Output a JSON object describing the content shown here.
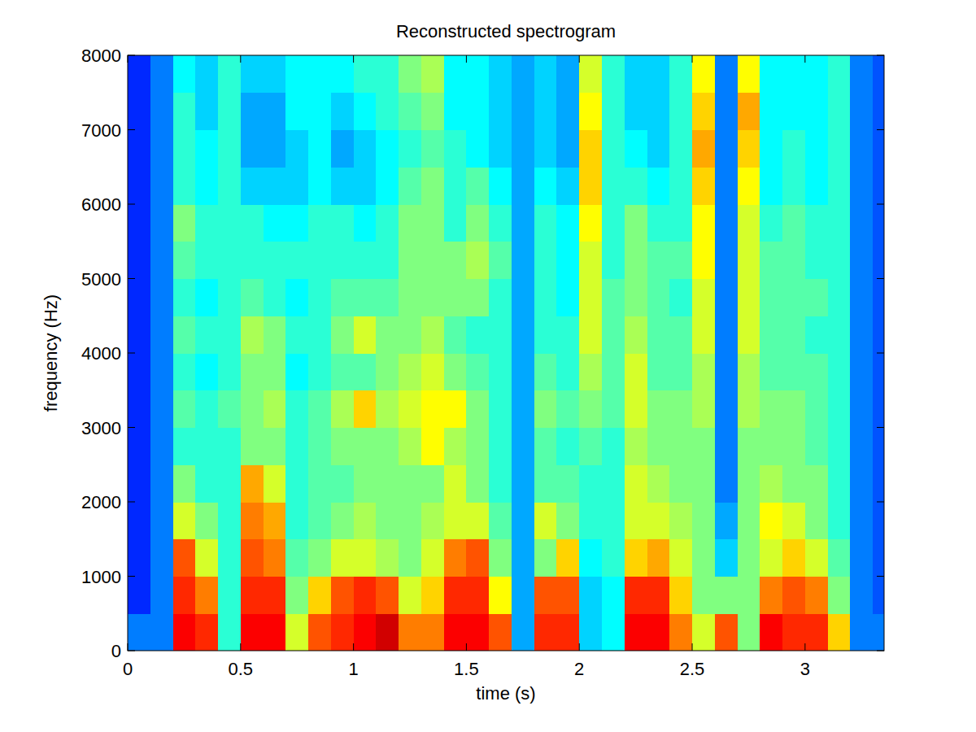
{
  "chart_data": {
    "type": "heatmap",
    "title": "Reconstructed spectrogram",
    "x_label": "time (s)",
    "y_label": "frequency (Hz)",
    "xlim": [
      0,
      3.35
    ],
    "ylim": [
      0,
      8000
    ],
    "xticks": [
      0,
      0.5,
      1,
      1.5,
      2,
      2.5,
      3
    ],
    "yticks": [
      0,
      1000,
      2000,
      3000,
      4000,
      5000,
      6000,
      7000,
      8000
    ],
    "zlim": [
      0,
      10
    ],
    "x": [
      0,
      0.1,
      0.2,
      0.3,
      0.4,
      0.5,
      0.6,
      0.7,
      0.8,
      0.9,
      1.0,
      1.1,
      1.2,
      1.3,
      1.4,
      1.5,
      1.6,
      1.7,
      1.8,
      1.9,
      2.0,
      2.1,
      2.2,
      2.3,
      2.4,
      2.5,
      2.6,
      2.7,
      2.8,
      2.9,
      3.0,
      3.1,
      3.2,
      3.3,
      3.35
    ],
    "y": [
      0,
      500,
      1000,
      1500,
      2000,
      2500,
      3000,
      3500,
      4000,
      4500,
      5000,
      5500,
      6000,
      6500,
      7000,
      7500,
      8000
    ],
    "z": [
      [
        2,
        1,
        1,
        1,
        1,
        1,
        1,
        1,
        1,
        1,
        1,
        1,
        1,
        1,
        1,
        1
      ],
      [
        2,
        2,
        2,
        2,
        2,
        2,
        2,
        2,
        2,
        2,
        2,
        2,
        2,
        2,
        2,
        2
      ],
      [
        9.5,
        9,
        8.5,
        6,
        5,
        4,
        4.5,
        4,
        4.5,
        4,
        4.5,
        5,
        4,
        4,
        4,
        3.5
      ],
      [
        9,
        8,
        6,
        5,
        4,
        4,
        4,
        3.5,
        4,
        3.5,
        4,
        4,
        3.5,
        3.5,
        3,
        3
      ],
      [
        4,
        4,
        4,
        4,
        4,
        4,
        4.5,
        4,
        4,
        4,
        4,
        4,
        4,
        4,
        4,
        4
      ],
      [
        9.5,
        9,
        8.5,
        8,
        7.5,
        5,
        5,
        5,
        5.5,
        4.5,
        4,
        4,
        3,
        2.5,
        2.5,
        3
      ],
      [
        9.5,
        9,
        8,
        7.5,
        6,
        5,
        5.5,
        5,
        5,
        4,
        4,
        3.5,
        3,
        2.5,
        2.5,
        3
      ],
      [
        6,
        5,
        4.5,
        4,
        4,
        4,
        4,
        3.5,
        4,
        3.5,
        4,
        3.5,
        3,
        3,
        3.5,
        3.5
      ],
      [
        8.5,
        7,
        5,
        4.5,
        4.5,
        4.5,
        4.5,
        4,
        4,
        4,
        4,
        4,
        3.5,
        3.5,
        3.5,
        3.5
      ],
      [
        9,
        8.5,
        6,
        5,
        4.5,
        5,
        5.5,
        4.5,
        5,
        4.5,
        4,
        4,
        3,
        2.5,
        3,
        3.5
      ],
      [
        9.5,
        9,
        6,
        5.5,
        5,
        5,
        7,
        4.5,
        6,
        4.5,
        4,
        3.5,
        3,
        3,
        3.5,
        4
      ],
      [
        10,
        8.5,
        5.5,
        5,
        5,
        5,
        5.5,
        5,
        5,
        4.5,
        4,
        4,
        3.5,
        3.5,
        4,
        4
      ],
      [
        8,
        6,
        5,
        5,
        5,
        5.5,
        6,
        5.5,
        5,
        5,
        5,
        5,
        4.5,
        4,
        4.5,
        5
      ],
      [
        8,
        7,
        6,
        5.5,
        5,
        6.5,
        6.5,
        6,
        5.5,
        5,
        5,
        5,
        5,
        4.5,
        5,
        5.5
      ],
      [
        9.5,
        9,
        8,
        6,
        6,
        5.5,
        6.5,
        5,
        4.5,
        5,
        5,
        4,
        4,
        4,
        3.5,
        3.5
      ],
      [
        9.5,
        9,
        8.5,
        6,
        5,
        5,
        5,
        4.5,
        4,
        5,
        5.5,
        5,
        4.5,
        3.5,
        3.5,
        3.5
      ],
      [
        8.5,
        6.5,
        5,
        4.5,
        4,
        4,
        4,
        4,
        4,
        4,
        4.5,
        4,
        3.5,
        3,
        3,
        3
      ],
      [
        2.5,
        2.5,
        2.5,
        2.5,
        2.5,
        2.5,
        2.5,
        2.5,
        2.5,
        2.5,
        2.5,
        2.5,
        2.5,
        2.5,
        2.5,
        2.5
      ],
      [
        9,
        8.5,
        5,
        6,
        4.5,
        4.5,
        5,
        4.5,
        4,
        4,
        4,
        4,
        3.5,
        3,
        3,
        3
      ],
      [
        9,
        8.5,
        7,
        5,
        4.5,
        4,
        4.5,
        4,
        4,
        3.5,
        3.5,
        3.5,
        3,
        2.5,
        2.5,
        2.5
      ],
      [
        3,
        3,
        3.5,
        4,
        4,
        4.5,
        5,
        5.5,
        6,
        6,
        6,
        6.5,
        7,
        7,
        6.5,
        6
      ],
      [
        3.5,
        3.5,
        4,
        4,
        4,
        4,
        4.5,
        4.5,
        4.5,
        4.5,
        4,
        4,
        4,
        4,
        4,
        4
      ],
      [
        9.5,
        9,
        7,
        6,
        6,
        5.5,
        6,
        6,
        5.5,
        5,
        5,
        5,
        4,
        3.5,
        3,
        3
      ],
      [
        9.5,
        9,
        7.5,
        6,
        5.5,
        5,
        5,
        4.5,
        4.5,
        4.5,
        4.5,
        4,
        3.5,
        3,
        3,
        3
      ],
      [
        8,
        7,
        6,
        5.5,
        5,
        5,
        5,
        4.5,
        4.5,
        4,
        4.5,
        4,
        4,
        4,
        4,
        4
      ],
      [
        6,
        5,
        5,
        5,
        5,
        5,
        5.5,
        5.5,
        6,
        6,
        6.5,
        6.5,
        7,
        7.5,
        7,
        6.5
      ],
      [
        8.5,
        5,
        3,
        2.5,
        2,
        2,
        2,
        2,
        2,
        2,
        2,
        2,
        2,
        2,
        2,
        2
      ],
      [
        5,
        5,
        5,
        5,
        5,
        5,
        5.5,
        5.5,
        6,
        6,
        6,
        6,
        6.5,
        7,
        7.5,
        6.5
      ],
      [
        9.5,
        8,
        6,
        6.5,
        5.5,
        5,
        5,
        4.5,
        4.5,
        4.5,
        4.5,
        4,
        3.5,
        3.5,
        3.5,
        3.5
      ],
      [
        9,
        8.5,
        7,
        6,
        5,
        5,
        5,
        4.5,
        4.5,
        4.5,
        4.5,
        4.5,
        4,
        4,
        3.5,
        3.5
      ],
      [
        9,
        8,
        6,
        5,
        5,
        4.5,
        4.5,
        4.5,
        4,
        4.5,
        4,
        4,
        3.5,
        3.5,
        3.5,
        3.5
      ],
      [
        7,
        5,
        4.5,
        4,
        4,
        4,
        4,
        4,
        4,
        4,
        4,
        4,
        4,
        4,
        4,
        4
      ],
      [
        2,
        2,
        2,
        2,
        2,
        2,
        2,
        2,
        2,
        2,
        2,
        2,
        2,
        2,
        2,
        2
      ],
      [
        2,
        1.5,
        1.5,
        1.5,
        1.5,
        1.5,
        1.5,
        1.5,
        1.5,
        1.5,
        1.5,
        1.5,
        1.5,
        1.5,
        1.5,
        1.5
      ]
    ]
  }
}
